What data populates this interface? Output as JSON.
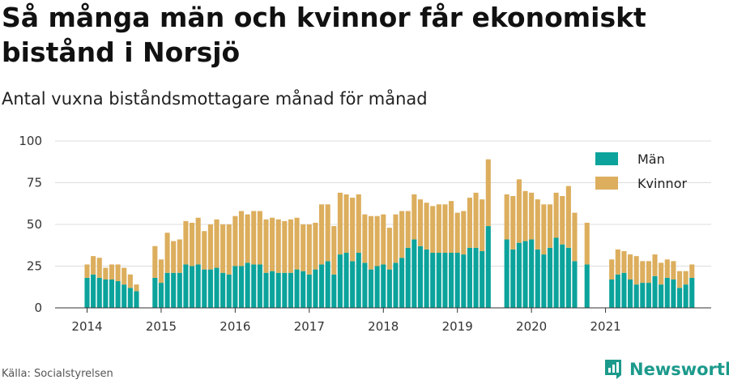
{
  "title": "Så många män och kvinnor får ekonomiskt bistånd i Norsjö",
  "subtitle": "Antal vuxna biståndsmottagare månad för månad",
  "source": "Källa: Socialstyrelsen",
  "brand": "Newsworthy",
  "chart_data": {
    "type": "bar",
    "stacked": true,
    "ylim": [
      0,
      100
    ],
    "yticks": [
      0,
      25,
      50,
      75,
      100
    ],
    "xticks": [
      "2014",
      "2015",
      "2016",
      "2017",
      "2018",
      "2019",
      "2020",
      "2021"
    ],
    "grid": true,
    "legend_position": "top-right",
    "colors": {
      "men": "#0ba39b",
      "women": "#dcae5d"
    },
    "start_month": "2014-01",
    "series": [
      {
        "name": "Män",
        "values": [
          18,
          20,
          18,
          17,
          17,
          16,
          14,
          12,
          10,
          null,
          null,
          18,
          15,
          21,
          21,
          21,
          26,
          25,
          26,
          23,
          23,
          24,
          21,
          20,
          25,
          25,
          27,
          26,
          26,
          21,
          22,
          21,
          21,
          21,
          23,
          22,
          20,
          23,
          26,
          28,
          20,
          32,
          33,
          28,
          33,
          27,
          23,
          25,
          26,
          23,
          27,
          30,
          36,
          41,
          37,
          35,
          33,
          33,
          33,
          33,
          33,
          32,
          36,
          36,
          34,
          49,
          null,
          null,
          41,
          35,
          39,
          40,
          41,
          35,
          32,
          36,
          42,
          38,
          36,
          28,
          null,
          26,
          null,
          null,
          null,
          17,
          20,
          21,
          17,
          14,
          15,
          15,
          19,
          14,
          18,
          17,
          12,
          14,
          18
        ]
      },
      {
        "name": "Kvinnor",
        "values": [
          8,
          11,
          12,
          7,
          9,
          10,
          10,
          8,
          4,
          null,
          null,
          19,
          14,
          24,
          19,
          20,
          26,
          26,
          28,
          23,
          27,
          29,
          29,
          30,
          30,
          33,
          29,
          32,
          32,
          32,
          32,
          32,
          31,
          32,
          31,
          28,
          30,
          28,
          36,
          34,
          29,
          37,
          35,
          38,
          35,
          29,
          32,
          30,
          30,
          25,
          29,
          28,
          22,
          27,
          28,
          28,
          28,
          29,
          29,
          31,
          24,
          26,
          30,
          33,
          31,
          40,
          null,
          null,
          27,
          32,
          38,
          30,
          28,
          30,
          30,
          26,
          27,
          29,
          37,
          29,
          null,
          25,
          null,
          null,
          null,
          12,
          15,
          13,
          15,
          17,
          13,
          13,
          13,
          13,
          11,
          11,
          10,
          8,
          8
        ]
      }
    ]
  }
}
